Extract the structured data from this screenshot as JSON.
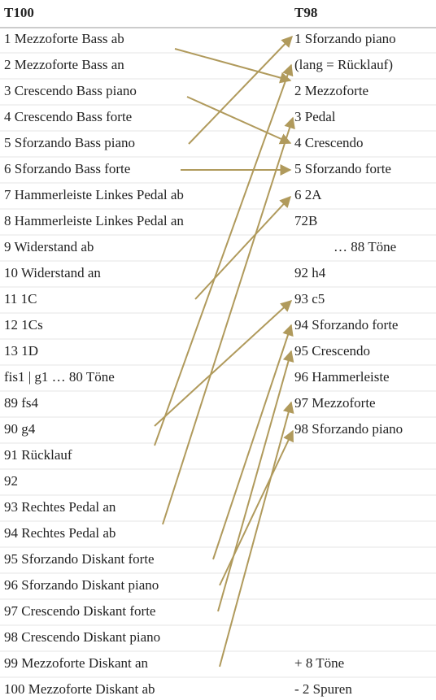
{
  "header": {
    "left": "T100",
    "right": "T98"
  },
  "left_items": [
    "1 Mezzoforte Bass ab",
    "2 Mezzoforte Bass an",
    "3 Crescendo Bass piano",
    "4 Crescendo Bass forte",
    "5 Sforzando Bass piano",
    "6 Sforzando Bass forte",
    "7 Hammerleiste Linkes Pedal ab",
    "8 Hammerleiste Linkes Pedal an",
    "9 Widerstand ab",
    "10 Widerstand an",
    "11 1C",
    "12 1Cs",
    "13 1D",
    "fis1 | g1 … 80 Töne",
    "89 fs4",
    "90  g4",
    "91 Rücklauf",
    "92",
    "93 Rechtes Pedal an",
    "94 Rechtes Pedal ab",
    "95 Sforzando Diskant forte",
    "96 Sforzando Diskant piano",
    "97 Crescendo Diskant forte",
    "98 Crescendo Diskant piano",
    "99 Mezzoforte Diskant an",
    "100 Mezzoforte Diskant ab"
  ],
  "right_items": [
    "1 Sforzando piano",
    "(lang = Rücklauf)",
    "2 Mezzoforte",
    "3 Pedal",
    "4 Crescendo",
    "5 Sforzando forte",
    "6 2A",
    "72B",
    "… 88 Töne",
    "92 h4",
    "93 c5",
    "94 Sforzando forte",
    "95 Crescendo",
    "96 Hammerleiste",
    "97 Mezzoforte",
    "98 Sforzando piano",
    "+ 8 Töne",
    "- 2 Spuren"
  ]
}
